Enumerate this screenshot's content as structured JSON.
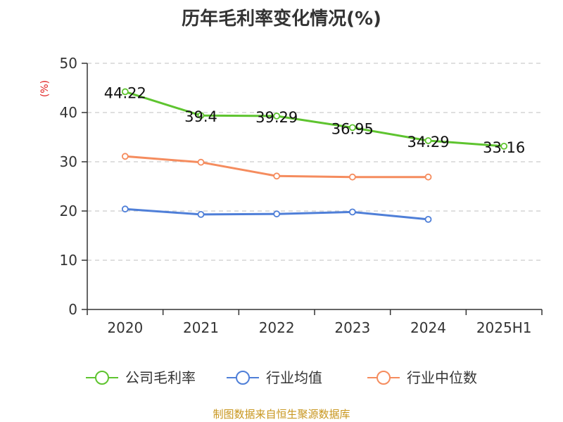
{
  "title": "历年毛利率变化情况(%)",
  "unit_label": "(%)",
  "source": "制图数据来自恒生聚源数据库",
  "colors": {
    "company": "#5ec42f",
    "industry_avg": "#4f7fd8",
    "industry_median": "#f58c5e",
    "unit": "#e02020",
    "source": "#c8961e",
    "axis": "#333333",
    "grid": "#cccccc"
  },
  "chart_data": {
    "type": "line",
    "categories": [
      "2020",
      "2021",
      "2022",
      "2023",
      "2024",
      "2025H1"
    ],
    "ylim": [
      0,
      50
    ],
    "yticks": [
      0,
      10,
      20,
      30,
      40,
      50
    ],
    "grid": true,
    "legend_position": "bottom",
    "series": [
      {
        "name": "公司毛利率",
        "values": [
          44.22,
          39.4,
          39.29,
          36.95,
          34.29,
          33.16
        ],
        "labels": [
          "44.22",
          "39.4",
          "39.29",
          "36.95",
          "34.29",
          "33.16"
        ]
      },
      {
        "name": "行业均值",
        "values": [
          20.4,
          19.3,
          19.4,
          19.8,
          18.3,
          null
        ]
      },
      {
        "name": "行业中位数",
        "values": [
          31.1,
          29.9,
          27.1,
          26.9,
          26.9,
          null
        ]
      }
    ]
  }
}
